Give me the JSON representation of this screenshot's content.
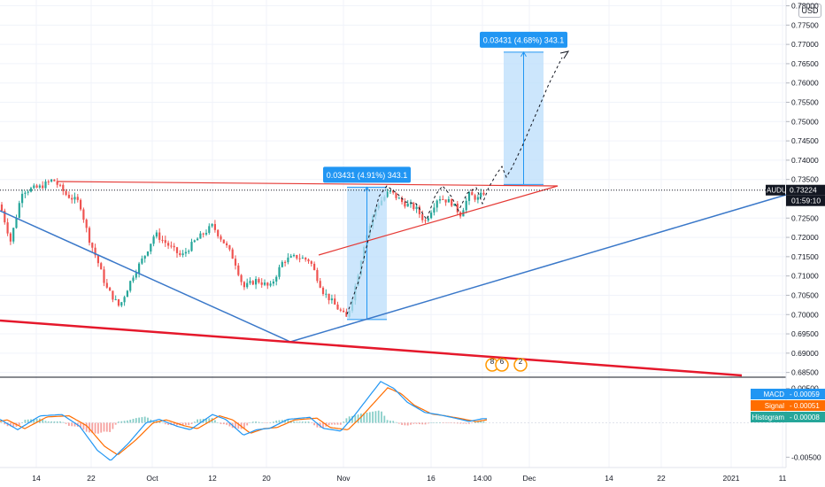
{
  "chart_data": {
    "type": "candlestick",
    "symbol_label": "AUDU-",
    "currency_label": "USD",
    "price_axis": {
      "ticks": [
        "0.78000",
        "0.77500",
        "0.77000",
        "0.76500",
        "0.76000",
        "0.75500",
        "0.75000",
        "0.74500",
        "0.74000",
        "0.73500",
        "0.72500",
        "0.72000",
        "0.71500",
        "0.71000",
        "0.70500",
        "0.70000",
        "0.69500",
        "0.69000",
        "0.68500"
      ],
      "ylim": [
        0.684,
        0.7815
      ]
    },
    "last_price": {
      "value": 0.73224,
      "label": "0.73224",
      "countdown": "01:59:10"
    },
    "time_axis": [
      "14",
      "22",
      "Oct",
      "12",
      "20",
      "Nov",
      "16",
      "14:00",
      "Dec",
      "14",
      "22",
      "2021",
      "11"
    ],
    "measure_boxes": [
      {
        "label": "0.03431 (4.91%) 343.1",
        "from": 0.6987,
        "to": 0.733
      },
      {
        "label": "0.03431 (4.68%) 343.1",
        "from": 0.7337,
        "to": 0.768
      }
    ],
    "trendlines": [
      {
        "name": "resistance",
        "color": "#e53935"
      },
      {
        "name": "rising-support",
        "color": "#e53935"
      },
      {
        "name": "descending-blue",
        "color": "#3a78c9"
      },
      {
        "name": "ascending-blue",
        "color": "#3a78c9"
      },
      {
        "name": "long-red",
        "color": "#e5182b"
      }
    ],
    "events": [
      "8",
      "6",
      "2"
    ],
    "macd": {
      "ticks": [
        "0.00500",
        "-0.00500"
      ],
      "ylim": [
        -0.0065,
        0.0065
      ],
      "legend": [
        {
          "label": "MACD",
          "value": "0.00059",
          "color": "#2196f3"
        },
        {
          "label": "Signal",
          "value": "0.00051",
          "color": "#ff6d00"
        },
        {
          "label": "Histogram",
          "value": "0.00008",
          "color": "#26a69a"
        }
      ]
    },
    "colors": {
      "up": "#26a69a",
      "down": "#ef5350"
    }
  }
}
